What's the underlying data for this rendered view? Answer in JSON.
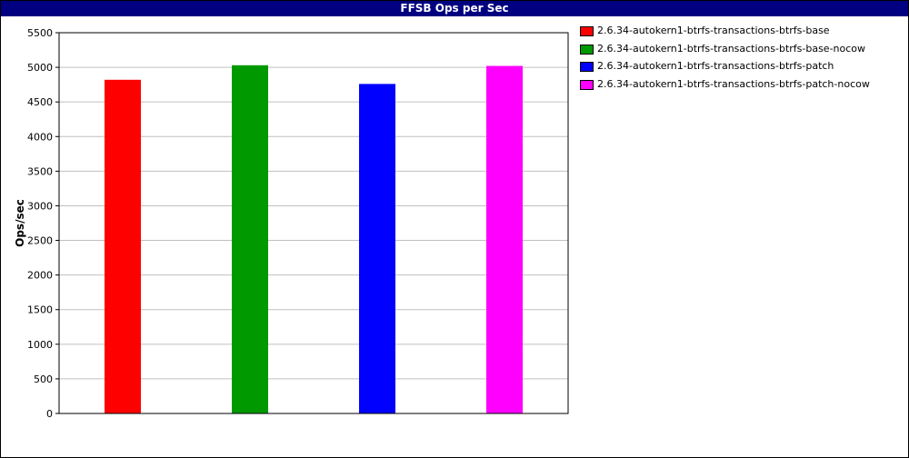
{
  "window": {
    "title": "FFSB Ops per Sec",
    "title_bg": "#000080",
    "title_color": "#ffffff"
  },
  "chart_data": {
    "type": "bar",
    "title": "FFSB Ops per Sec",
    "xlabel": "",
    "ylabel": "Ops/sec",
    "ylim": [
      0,
      5500
    ],
    "yticks": [
      0,
      500,
      1000,
      1500,
      2000,
      2500,
      3000,
      3500,
      4000,
      4500,
      5000,
      5500
    ],
    "grid": true,
    "legend_position": "right",
    "series": [
      {
        "name": "2.6.34-autokern1-btrfs-transactions-btrfs-base",
        "value": 4820,
        "color": "#ff0000"
      },
      {
        "name": "2.6.34-autokern1-btrfs-transactions-btrfs-base-nocow",
        "value": 5030,
        "color": "#009900"
      },
      {
        "name": "2.6.34-autokern1-btrfs-transactions-btrfs-patch",
        "value": 4760,
        "color": "#0000ff"
      },
      {
        "name": "2.6.34-autokern1-btrfs-transactions-btrfs-patch-nocow",
        "value": 5020,
        "color": "#ff00ff"
      }
    ]
  }
}
